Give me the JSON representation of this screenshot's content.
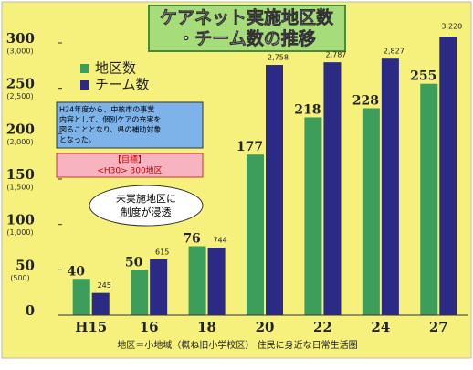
{
  "chart_data": {
    "type": "bar",
    "title": [
      "ケアネット実施地区数",
      "・チーム数の推移"
    ],
    "categories": [
      "H15",
      "16",
      "18",
      "20",
      "22",
      "24",
      "27"
    ],
    "series": [
      {
        "name": "地区数",
        "color": "#3c9e5a",
        "values": [
          40,
          50,
          76,
          177,
          218,
          228,
          255
        ]
      },
      {
        "name": "チーム数",
        "color": "#2b2b86",
        "axis": "y2",
        "values": [
          245,
          615,
          744,
          2758,
          2787,
          2827,
          3220
        ],
        "value_labels": [
          "245",
          "615",
          "744",
          "2,758",
          "2,787",
          "2,827",
          "3,220"
        ]
      }
    ],
    "ylim": [
      0,
      300
    ],
    "yticks": [
      0,
      50,
      100,
      150,
      200,
      250,
      300
    ],
    "y2lim": [
      0,
      3000
    ],
    "y2ticks": [
      {
        "value": 500,
        "label": "(500)"
      },
      {
        "value": 1000,
        "label": "(1,000)"
      },
      {
        "value": 1500,
        "label": "(1,500)"
      },
      {
        "value": 2000,
        "label": "(2,000)"
      },
      {
        "value": 2500,
        "label": "(2,500)"
      },
      {
        "value": 3000,
        "label": "(3,000)"
      }
    ],
    "annotations": [
      "H24年度から、中核市の事業",
      "内容として、個別ケアの充実を",
      "図ることとなり、県の補助対象",
      "となった。",
      "【目標】",
      "<H30> 300地区",
      "未実施地区に",
      "制度が浸透"
    ],
    "footer": "地区＝小地域（概ね旧小学校区） 住民に身近な日常生活圏",
    "legend": "upper left"
  }
}
